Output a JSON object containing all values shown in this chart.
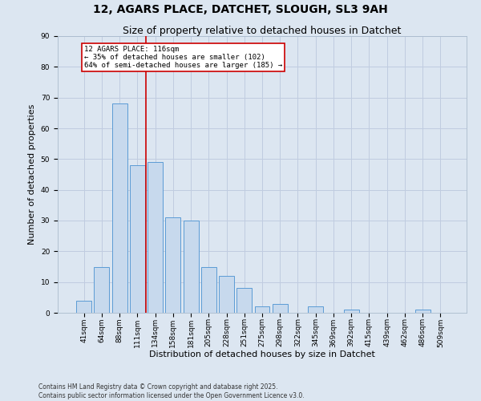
{
  "title": "12, AGARS PLACE, DATCHET, SLOUGH, SL3 9AH",
  "subtitle": "Size of property relative to detached houses in Datchet",
  "xlabel": "Distribution of detached houses by size in Datchet",
  "ylabel": "Number of detached properties",
  "categories": [
    "41sqm",
    "64sqm",
    "88sqm",
    "111sqm",
    "134sqm",
    "158sqm",
    "181sqm",
    "205sqm",
    "228sqm",
    "251sqm",
    "275sqm",
    "298sqm",
    "322sqm",
    "345sqm",
    "369sqm",
    "392sqm",
    "415sqm",
    "439sqm",
    "462sqm",
    "486sqm",
    "509sqm"
  ],
  "values": [
    4,
    15,
    68,
    48,
    49,
    31,
    30,
    15,
    12,
    8,
    2,
    3,
    0,
    2,
    0,
    1,
    0,
    0,
    0,
    1,
    0
  ],
  "bar_color": "#c7d9ed",
  "bar_edge_color": "#5b9bd5",
  "vline_x": 3.5,
  "annotation_line1": "12 AGARS PLACE: 116sqm",
  "annotation_line2": "← 35% of detached houses are smaller (102)",
  "annotation_line3": "64% of semi-detached houses are larger (185) →",
  "annotation_box_color": "#ffffff",
  "annotation_box_edge_color": "#cc0000",
  "vline_color": "#cc0000",
  "grid_color": "#c0cce0",
  "background_color": "#dce6f1",
  "plot_bg_color": "#dce6f1",
  "ylim": [
    0,
    90
  ],
  "yticks": [
    0,
    10,
    20,
    30,
    40,
    50,
    60,
    70,
    80,
    90
  ],
  "footer": "Contains HM Land Registry data © Crown copyright and database right 2025.\nContains public sector information licensed under the Open Government Licence v3.0.",
  "title_fontsize": 10,
  "subtitle_fontsize": 9,
  "tick_fontsize": 6.5,
  "label_fontsize": 8,
  "footer_fontsize": 5.5
}
